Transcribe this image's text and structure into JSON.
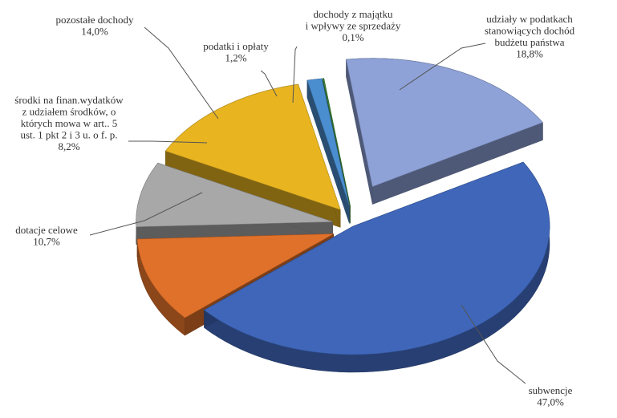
{
  "chart_data": {
    "type": "pie",
    "title": "",
    "legend": "none",
    "categories": [
      "subwencje",
      "dotacje celowe",
      "środki na finan.wydatków z udziałem środków, o których mowa w art.. 5 ust. 1 pkt 2 i 3 u. o f. p.",
      "pozostałe dochody",
      "podatki i opłaty",
      "dochody z majątku i wpływy ze sprzedaży",
      "udziały w podatkach stanowiących dochód budżetu państwa"
    ],
    "values": [
      47.0,
      10.7,
      8.2,
      14.0,
      1.2,
      0.1,
      18.8
    ],
    "value_labels": [
      "47,0%",
      "10,7%",
      "8,2%",
      "14,0%",
      "1,2%",
      "0,1%",
      "18,8%"
    ],
    "label_lines": [
      [
        "subwencje"
      ],
      [
        "dotacje celowe"
      ],
      [
        "środki na finan.wydatków",
        "z udziałem środków, o",
        "których mowa w art.. 5",
        "ust. 1 pkt 2 i 3 u. o f. p."
      ],
      [
        "pozostałe dochody"
      ],
      [
        "podatki i opłaty"
      ],
      [
        "dochody z majątku",
        "i wpływy  ze sprzedaży"
      ],
      [
        "udziały w podatkach",
        "stanowiących dochód",
        "budżetu państwa"
      ]
    ],
    "colors": [
      "#3F66B9",
      "#E0712A",
      "#A8A8A8",
      "#E8B521",
      "#4A8ED0",
      "#3F8A3A",
      "#8EA2D8"
    ]
  }
}
